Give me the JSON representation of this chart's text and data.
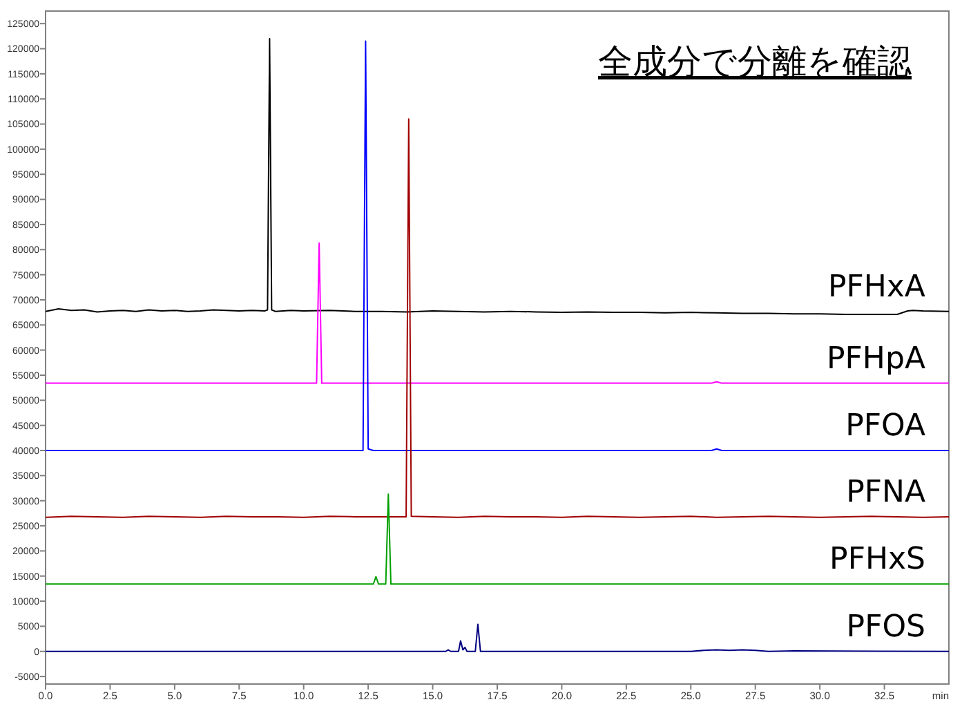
{
  "chart_data": {
    "type": "line",
    "title": "全成分で分離を確認",
    "xlabel": "min",
    "xlim": [
      0,
      35
    ],
    "xticks": [
      {
        "value": 0,
        "label": "0.0"
      },
      2.5,
      {
        "value": 5,
        "label": "5.0"
      },
      7.5,
      {
        "value": 10,
        "label": "10.0"
      },
      12.5,
      {
        "value": 15,
        "label": "15.0"
      },
      17.5,
      {
        "value": 20,
        "label": "20.0"
      },
      22.5,
      {
        "value": 25,
        "label": "25.0"
      },
      27.5,
      {
        "value": 30,
        "label": "30.0"
      },
      32.5
    ],
    "ylim": [
      -6500,
      127500
    ],
    "yticks": [
      -5000,
      0,
      5000,
      10000,
      15000,
      20000,
      25000,
      30000,
      35000,
      40000,
      45000,
      50000,
      55000,
      60000,
      65000,
      70000,
      75000,
      80000,
      85000,
      90000,
      95000,
      100000,
      105000,
      110000,
      115000,
      120000,
      125000
    ],
    "marker": "none",
    "line_style": "solid",
    "series": [
      {
        "name": "PFHxA",
        "color": "#000000",
        "x": [
          0,
          0.5,
          1,
          1.5,
          2,
          2.5,
          3,
          3.5,
          4,
          4.5,
          5,
          5.5,
          6,
          6.5,
          7,
          7.5,
          8,
          8.5,
          8.6,
          8.68,
          8.76,
          8.9,
          9.5,
          10,
          11,
          12,
          13,
          14,
          15,
          16,
          17,
          18,
          19,
          20,
          21,
          22,
          23,
          24,
          25,
          26,
          27,
          28,
          29,
          30,
          31,
          32,
          33,
          33.4,
          33.6,
          34,
          35
        ],
        "values": [
          67700,
          68200,
          67900,
          68000,
          67600,
          67800,
          67900,
          67700,
          68000,
          67800,
          67900,
          67700,
          67800,
          68000,
          67900,
          67800,
          67900,
          67800,
          68000,
          122000,
          68000,
          67700,
          67900,
          67800,
          67900,
          67700,
          67700,
          67600,
          67800,
          67700,
          67600,
          67700,
          67600,
          67500,
          67600,
          67500,
          67500,
          67400,
          67500,
          67400,
          67300,
          67300,
          67200,
          67200,
          67100,
          67100,
          67100,
          67800,
          67900,
          67800,
          67700
        ]
      },
      {
        "name": "PFHpA",
        "color": "#ff00ff",
        "x": [
          0,
          10.5,
          10.6,
          10.7,
          25.8,
          26,
          26.2,
          35
        ],
        "values": [
          53400,
          53400,
          81300,
          53400,
          53400,
          53700,
          53400,
          53400
        ]
      },
      {
        "name": "PFOA",
        "color": "#0000ff",
        "x": [
          0,
          12.3,
          12.4,
          12.5,
          12.7,
          25.8,
          26,
          26.2,
          35
        ],
        "values": [
          40000,
          40000,
          121500,
          40300,
          40000,
          40000,
          40300,
          40000,
          40000
        ]
      },
      {
        "name": "PFNA",
        "color": "#a00000",
        "x": [
          0,
          1,
          2,
          3,
          4,
          5,
          6,
          7,
          8,
          9,
          10,
          11,
          12,
          13,
          13.97,
          14.07,
          14.17,
          15,
          16,
          17,
          18,
          19,
          20,
          21,
          22,
          23,
          24,
          25,
          26,
          27,
          28,
          29,
          30,
          31,
          32,
          33,
          34,
          35
        ],
        "values": [
          26700,
          26900,
          26800,
          26700,
          26900,
          26800,
          26700,
          26900,
          26800,
          26800,
          26700,
          26900,
          26800,
          26800,
          26800,
          106000,
          26900,
          26800,
          26700,
          26900,
          26800,
          26800,
          26700,
          26900,
          26800,
          26700,
          26800,
          26900,
          26700,
          26800,
          26900,
          26800,
          26700,
          26800,
          26900,
          26800,
          26700,
          26800
        ]
      },
      {
        "name": "PFHxS",
        "color": "#00a000",
        "x": [
          0,
          12.7,
          12.8,
          12.9,
          13.18,
          13.28,
          13.38,
          35
        ],
        "values": [
          13400,
          13400,
          14900,
          13400,
          13400,
          31300,
          13400,
          13400
        ]
      },
      {
        "name": "PFOS",
        "color": "#000080",
        "x": [
          0,
          15.5,
          15.6,
          15.7,
          16,
          16.08,
          16.17,
          16.25,
          16.33,
          16.65,
          16.75,
          16.85,
          17,
          25,
          25.5,
          26,
          26.5,
          27,
          27.5,
          28,
          29,
          35
        ],
        "values": [
          0,
          0,
          300,
          0,
          0,
          2100,
          300,
          800,
          0,
          0,
          5400,
          0,
          0,
          0,
          200,
          300,
          200,
          300,
          200,
          0,
          100,
          0
        ]
      }
    ]
  }
}
